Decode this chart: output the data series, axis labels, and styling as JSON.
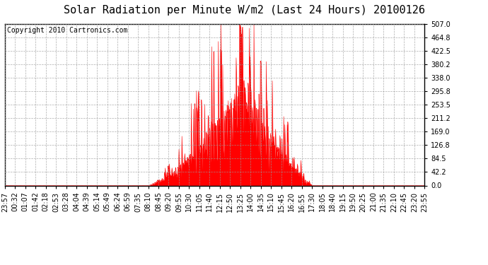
{
  "title": "Solar Radiation per Minute W/m2 (Last 24 Hours) 20100126",
  "copyright": "Copyright 2010 Cartronics.com",
  "yticks": [
    0.0,
    42.2,
    84.5,
    126.8,
    169.0,
    211.2,
    253.5,
    295.8,
    338.0,
    380.2,
    422.5,
    464.8,
    507.0
  ],
  "ymax": 507.0,
  "ymin": 0.0,
  "bar_color": "#ff0000",
  "fill_color": "#ff0000",
  "background_color": "#ffffff",
  "plot_bg_color": "#ffffff",
  "grid_color": "#999999",
  "border_color": "#000000",
  "title_fontsize": 11,
  "copyright_fontsize": 7,
  "tick_fontsize": 7,
  "num_minutes": 1440,
  "x_labels": [
    "23:57",
    "00:32",
    "01:07",
    "01:42",
    "02:18",
    "02:53",
    "03:28",
    "04:04",
    "04:39",
    "05:14",
    "05:49",
    "06:24",
    "06:59",
    "07:35",
    "08:10",
    "08:45",
    "09:20",
    "09:55",
    "10:30",
    "11:05",
    "11:40",
    "12:15",
    "12:50",
    "13:25",
    "14:00",
    "14:35",
    "15:10",
    "15:45",
    "16:20",
    "16:55",
    "17:30",
    "18:05",
    "18:40",
    "19:15",
    "19:50",
    "20:25",
    "21:00",
    "21:35",
    "22:10",
    "22:45",
    "23:20",
    "23:55"
  ]
}
